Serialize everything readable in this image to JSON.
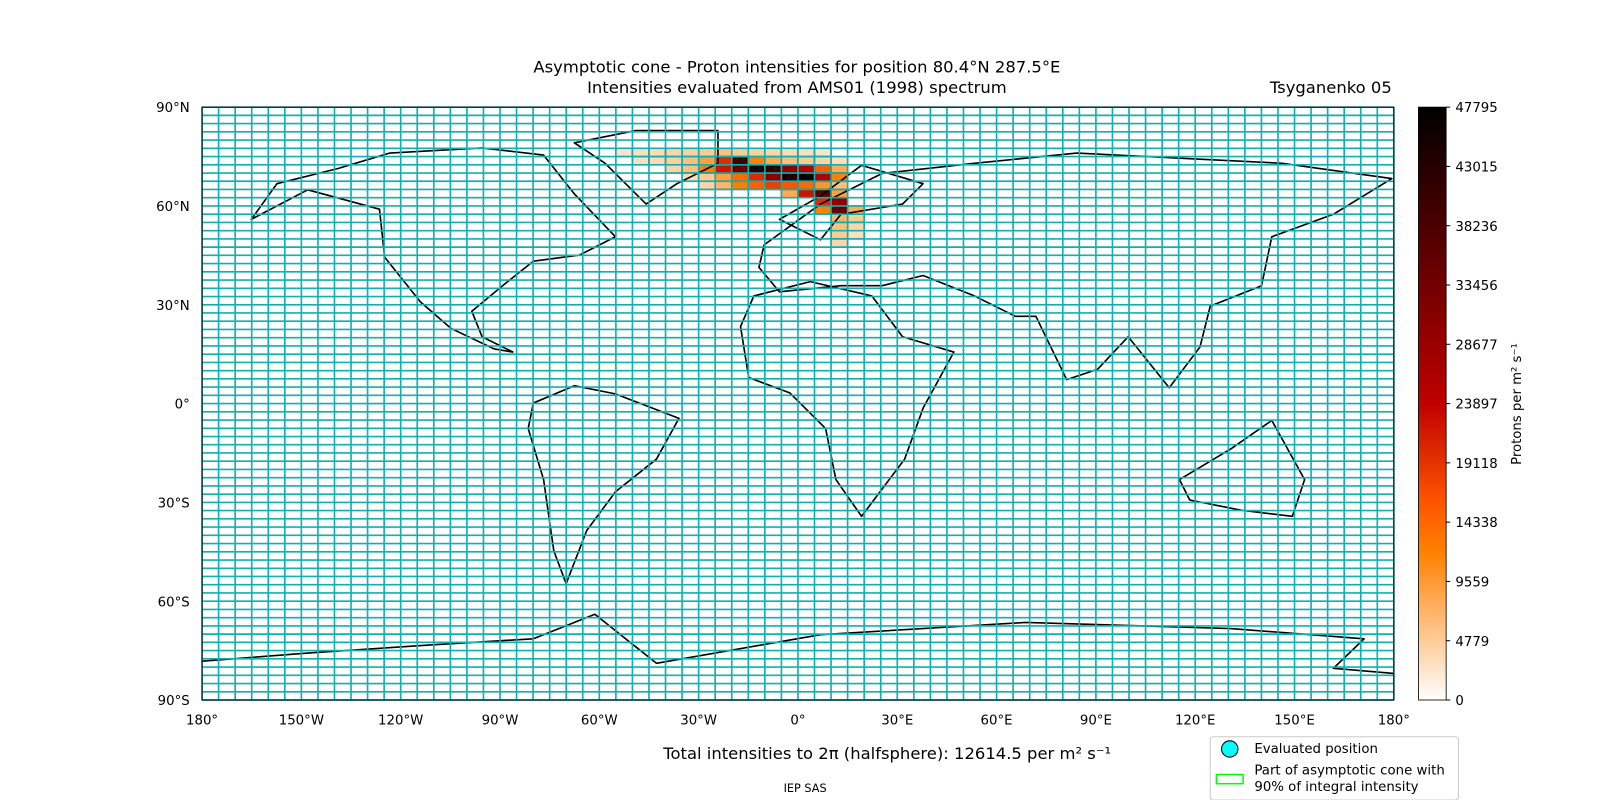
{
  "chart_data": {
    "type": "map-heatmap",
    "title": "Asymptotic cone - Proton intensities for position 80.4°N 287.5°E",
    "subtitle": "Intensities evaluated from AMS01 (1998) spectrum",
    "model": "Tsyganenko 05",
    "footer": "Total intensities to 2π (halfsphere): 12614.5 per m² s⁻¹",
    "credit": "IEP SAS",
    "xlim": [
      -180,
      180
    ],
    "ylim": [
      -90,
      90
    ],
    "xticks": [
      {
        "value": -180,
        "label": "180°"
      },
      {
        "value": -150,
        "label": "150°W"
      },
      {
        "value": -120,
        "label": "120°W"
      },
      {
        "value": -90,
        "label": "90°W"
      },
      {
        "value": -60,
        "label": "60°W"
      },
      {
        "value": -30,
        "label": "30°W"
      },
      {
        "value": 0,
        "label": "0°"
      },
      {
        "value": 30,
        "label": "30°E"
      },
      {
        "value": 60,
        "label": "60°E"
      },
      {
        "value": 90,
        "label": "90°E"
      },
      {
        "value": 120,
        "label": "120°E"
      },
      {
        "value": 150,
        "label": "150°E"
      },
      {
        "value": 180,
        "label": "180°"
      }
    ],
    "yticks": [
      {
        "value": 90,
        "label": "90°N"
      },
      {
        "value": 60,
        "label": "60°N"
      },
      {
        "value": 30,
        "label": "30°N"
      },
      {
        "value": 0,
        "label": "0°"
      },
      {
        "value": -30,
        "label": "30°S"
      },
      {
        "value": -60,
        "label": "60°S"
      },
      {
        "value": -90,
        "label": "90°S"
      }
    ],
    "cell_size": [
      5,
      2.5
    ],
    "grid_color": "#10b0b0",
    "colormap": "gist_heat_r",
    "cells": {
      "lon": [
        -55,
        -50,
        -45,
        -40,
        -35,
        -30,
        -25,
        -20,
        -15,
        -10,
        -5,
        0,
        5,
        -50,
        -45,
        -40,
        -35,
        -30,
        -25,
        -20,
        -15,
        -10,
        -5,
        0,
        5,
        10,
        -40,
        -35,
        -30,
        -25,
        -20,
        -15,
        -10,
        -5,
        0,
        5,
        10,
        -35,
        -30,
        -25,
        -20,
        -15,
        -10,
        -5,
        0,
        5,
        10,
        -30,
        -25,
        -20,
        -15,
        -10,
        -5,
        0,
        5,
        10,
        -5,
        0,
        5,
        10,
        5,
        10,
        5,
        10,
        15,
        10,
        15,
        10,
        15,
        10,
        15,
        10
      ],
      "lat": [
        75,
        75,
        75,
        75,
        75,
        75,
        75,
        75,
        75,
        75,
        75,
        75,
        75,
        72.5,
        72.5,
        72.5,
        72.5,
        72.5,
        72.5,
        72.5,
        72.5,
        72.5,
        72.5,
        72.5,
        72.5,
        72.5,
        70,
        70,
        70,
        70,
        70,
        70,
        70,
        70,
        70,
        70,
        70,
        67.5,
        67.5,
        67.5,
        67.5,
        67.5,
        67.5,
        67.5,
        67.5,
        67.5,
        67.5,
        65,
        65,
        65,
        65,
        65,
        65,
        65,
        65,
        65,
        62.5,
        62.5,
        62.5,
        62.5,
        60,
        60,
        57.5,
        57.5,
        57.5,
        55,
        55,
        52.5,
        52.5,
        50,
        50,
        47.5
      ],
      "values": [
        2500,
        3000,
        3500,
        4000,
        4500,
        5000,
        6000,
        5000,
        4500,
        4000,
        3500,
        3000,
        2500,
        3000,
        3500,
        4500,
        6000,
        9000,
        20000,
        40000,
        12000,
        8000,
        6000,
        5000,
        4000,
        3000,
        4000,
        6000,
        12000,
        22000,
        35000,
        44000,
        42000,
        30000,
        25000,
        15000,
        8000,
        3500,
        5000,
        9000,
        14000,
        20000,
        30000,
        45000,
        47795,
        26000,
        12000,
        4000,
        7000,
        12000,
        15000,
        18000,
        16000,
        14000,
        10000,
        6000,
        8000,
        22000,
        36000,
        9000,
        20000,
        30000,
        12000,
        35000,
        8000,
        7000,
        5000,
        6000,
        4000,
        5000,
        3000,
        4000
      ]
    },
    "colorbar": {
      "label": "Protons per m² s⁻¹",
      "lim": [
        0,
        47795
      ],
      "ticks": [
        0,
        4779,
        9559,
        14338,
        19118,
        23897,
        28677,
        33456,
        38236,
        43015,
        47795
      ]
    },
    "legend": [
      {
        "name": "Evaluated position",
        "color": "#00ffff"
      },
      {
        "name": "Part of asymptotic cone with",
        "name2": "90% of integral intensity",
        "color": "#00ff00"
      }
    ]
  }
}
